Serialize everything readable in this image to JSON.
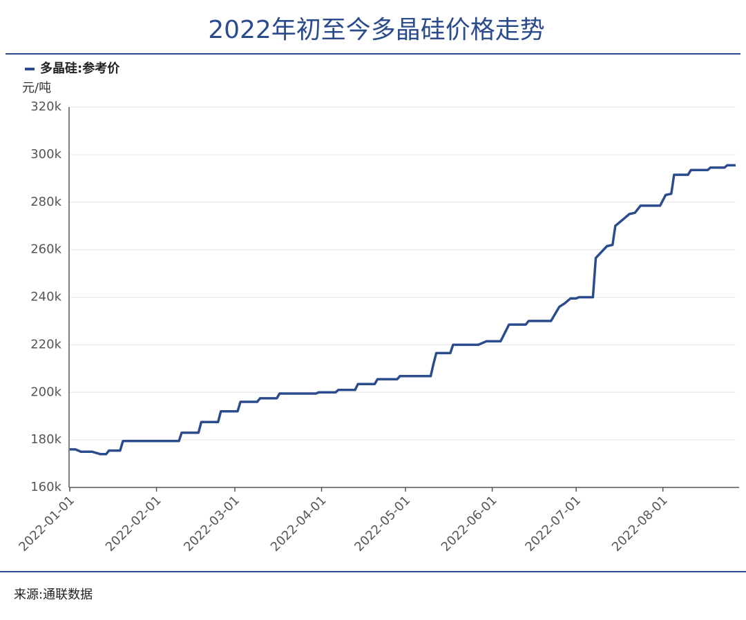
{
  "chart_data": {
    "type": "line",
    "title": "2022年初至今多晶硅价格走势",
    "y_axis_label": "元/吨",
    "source": "来源:通联数据",
    "x": [
      "2022-01-01",
      "2022-01-03",
      "2022-01-05",
      "2022-01-09",
      "2022-01-12",
      "2022-01-14",
      "2022-01-15",
      "2022-01-19",
      "2022-01-20",
      "2022-02-09",
      "2022-02-10",
      "2022-02-16",
      "2022-02-17",
      "2022-02-23",
      "2022-02-24",
      "2022-03-02",
      "2022-03-03",
      "2022-03-09",
      "2022-03-10",
      "2022-03-16",
      "2022-03-17",
      "2022-03-30",
      "2022-03-31",
      "2022-04-06",
      "2022-04-07",
      "2022-04-13",
      "2022-04-14",
      "2022-04-20",
      "2022-04-21",
      "2022-04-28",
      "2022-04-29",
      "2022-05-10",
      "2022-05-11",
      "2022-05-12",
      "2022-05-17",
      "2022-05-18",
      "2022-05-27",
      "2022-05-30",
      "2022-06-04",
      "2022-06-07",
      "2022-06-13",
      "2022-06-14",
      "2022-06-22",
      "2022-06-25",
      "2022-06-27",
      "2022-06-29",
      "2022-07-01",
      "2022-07-02",
      "2022-07-07",
      "2022-07-08",
      "2022-07-12",
      "2022-07-14",
      "2022-07-15",
      "2022-07-18",
      "2022-07-20",
      "2022-07-22",
      "2022-07-24",
      "2022-07-31",
      "2022-08-02",
      "2022-08-04",
      "2022-08-05",
      "2022-08-10",
      "2022-08-11",
      "2022-08-17",
      "2022-08-18",
      "2022-08-23",
      "2022-08-24",
      "2022-08-27"
    ],
    "series": [
      {
        "name": "多晶硅:参考价",
        "color": "#2b4c8c",
        "values": [
          176000,
          176000,
          175000,
          175000,
          174000,
          174000,
          175500,
          175500,
          179500,
          179500,
          183000,
          183000,
          187500,
          187500,
          192000,
          192000,
          196000,
          196000,
          197500,
          197500,
          199500,
          199500,
          200000,
          200000,
          201000,
          201000,
          203500,
          203500,
          205500,
          205500,
          206800,
          206800,
          212000,
          216500,
          216500,
          220000,
          220000,
          221500,
          221500,
          228500,
          228500,
          230000,
          230000,
          236000,
          237500,
          239500,
          239500,
          240000,
          240000,
          256500,
          261500,
          262000,
          270000,
          273000,
          275000,
          275500,
          278500,
          278500,
          283000,
          283500,
          291500,
          291500,
          293500,
          293500,
          294500,
          294500,
          295500,
          295500
        ]
      }
    ],
    "xlim": [
      "2022-01-01",
      "2022-08-27"
    ],
    "xticks": [
      "2022-01-01",
      "2022-02-01",
      "2022-03-01",
      "2022-04-01",
      "2022-05-01",
      "2022-06-01",
      "2022-07-01",
      "2022-08-01"
    ],
    "ylim": [
      160000,
      320000
    ],
    "yticks": [
      {
        "value": 160000,
        "label": "160k"
      },
      {
        "value": 180000,
        "label": "180k"
      },
      {
        "value": 200000,
        "label": "200k"
      },
      {
        "value": 220000,
        "label": "220k"
      },
      {
        "value": 240000,
        "label": "240k"
      },
      {
        "value": 260000,
        "label": "260k"
      },
      {
        "value": 280000,
        "label": "280k"
      },
      {
        "value": 300000,
        "label": "300k"
      },
      {
        "value": 320000,
        "label": "320k"
      }
    ],
    "grid": true
  }
}
